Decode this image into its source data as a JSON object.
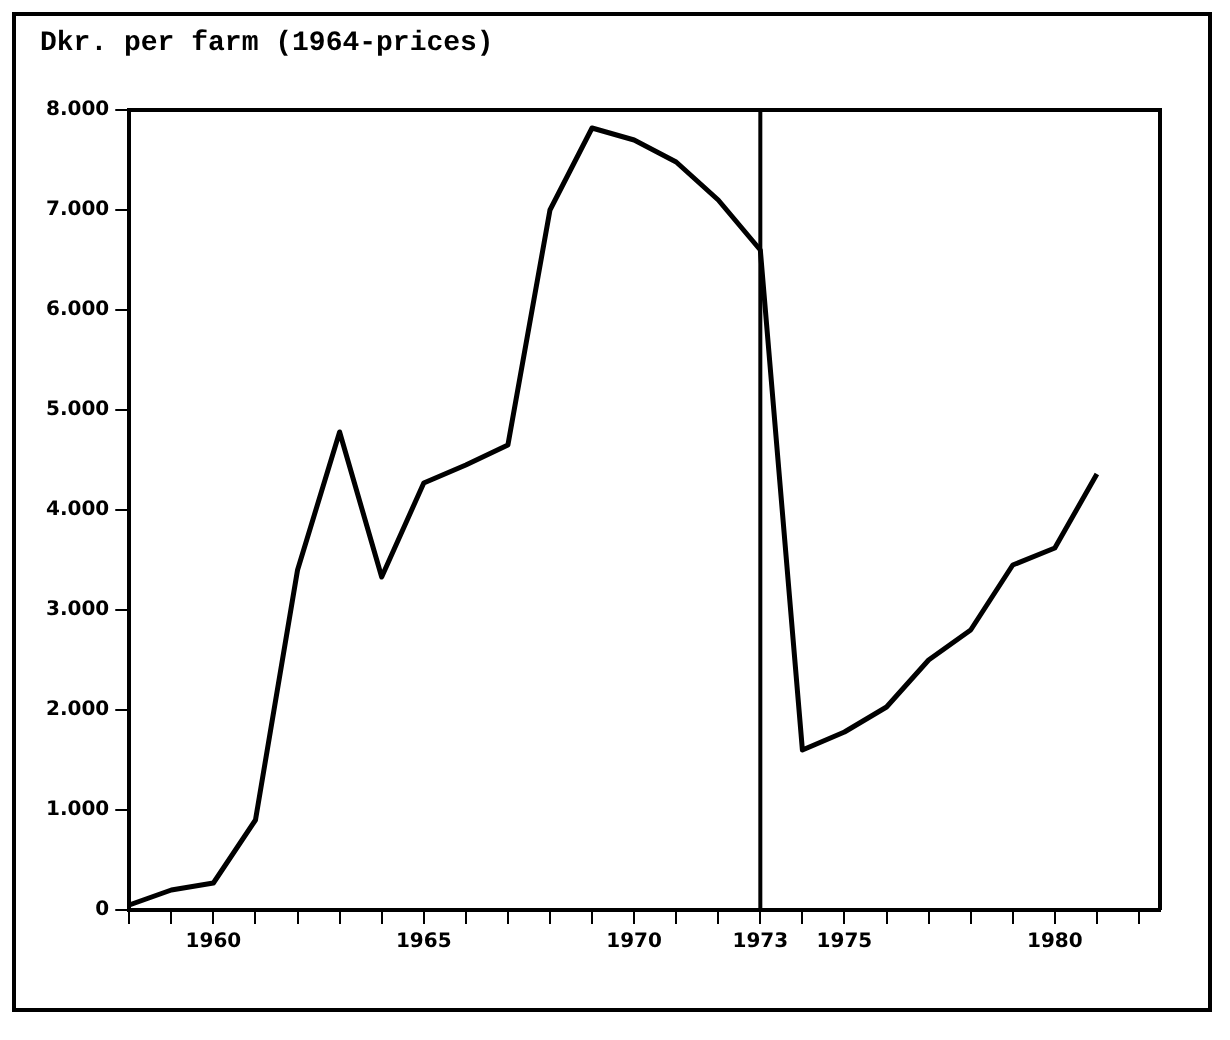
{
  "chart_data": {
    "type": "line",
    "ylabel": "Dkr. per farm (1964-prices)",
    "x": [
      1958,
      1959,
      1960,
      1961,
      1962,
      1963,
      1964,
      1965,
      1966,
      1967,
      1968,
      1969,
      1970,
      1971,
      1972,
      1973,
      1974,
      1975,
      1976,
      1977,
      1978,
      1979,
      1980,
      1981
    ],
    "series": [
      {
        "color": "#000000",
        "values": [
          50,
          200,
          270,
          900,
          3400,
          4780,
          3330,
          4270,
          4450,
          4650,
          7000,
          7820,
          7700,
          7480,
          7100,
          6600,
          1600,
          1780,
          2030,
          2500,
          2800,
          3450,
          3620,
          4360
        ]
      }
    ],
    "xlim": [
      1958,
      1982.5
    ],
    "xticks": [
      {
        "value": 1958,
        "label": null
      },
      {
        "value": 1959,
        "label": null
      },
      1960,
      {
        "value": 1961,
        "label": null
      },
      {
        "value": 1962,
        "label": null
      },
      {
        "value": 1963,
        "label": null
      },
      {
        "value": 1964,
        "label": null
      },
      1965,
      {
        "value": 1966,
        "label": null
      },
      {
        "value": 1967,
        "label": null
      },
      {
        "value": 1968,
        "label": null
      },
      {
        "value": 1969,
        "label": null
      },
      1970,
      {
        "value": 1971,
        "label": null
      },
      {
        "value": 1972,
        "label": null
      },
      1973,
      {
        "value": 1974,
        "label": null
      },
      1975,
      {
        "value": 1976,
        "label": null
      },
      {
        "value": 1977,
        "label": null
      },
      {
        "value": 1978,
        "label": null
      },
      {
        "value": 1979,
        "label": null
      },
      1980,
      {
        "value": 1981,
        "label": null
      },
      {
        "value": 1982,
        "label": null
      }
    ],
    "ylim": [
      0,
      8000
    ],
    "yticks": [
      0,
      {
        "value": 1000,
        "label": "1.000"
      },
      {
        "value": 2000,
        "label": "2.000"
      },
      {
        "value": 3000,
        "label": "3.000"
      },
      {
        "value": 4000,
        "label": "4.000"
      },
      {
        "value": 5000,
        "label": "5.000"
      },
      {
        "value": 6000,
        "label": "6.000"
      },
      {
        "value": 7000,
        "label": "7.000"
      },
      {
        "value": 8000,
        "label": "8.000"
      }
    ],
    "ref_lines": [
      {
        "axis": "x",
        "value": 1973,
        "color": "#000000"
      }
    ],
    "grid": false,
    "legend": false,
    "marker": "none",
    "line_style": "solid"
  }
}
